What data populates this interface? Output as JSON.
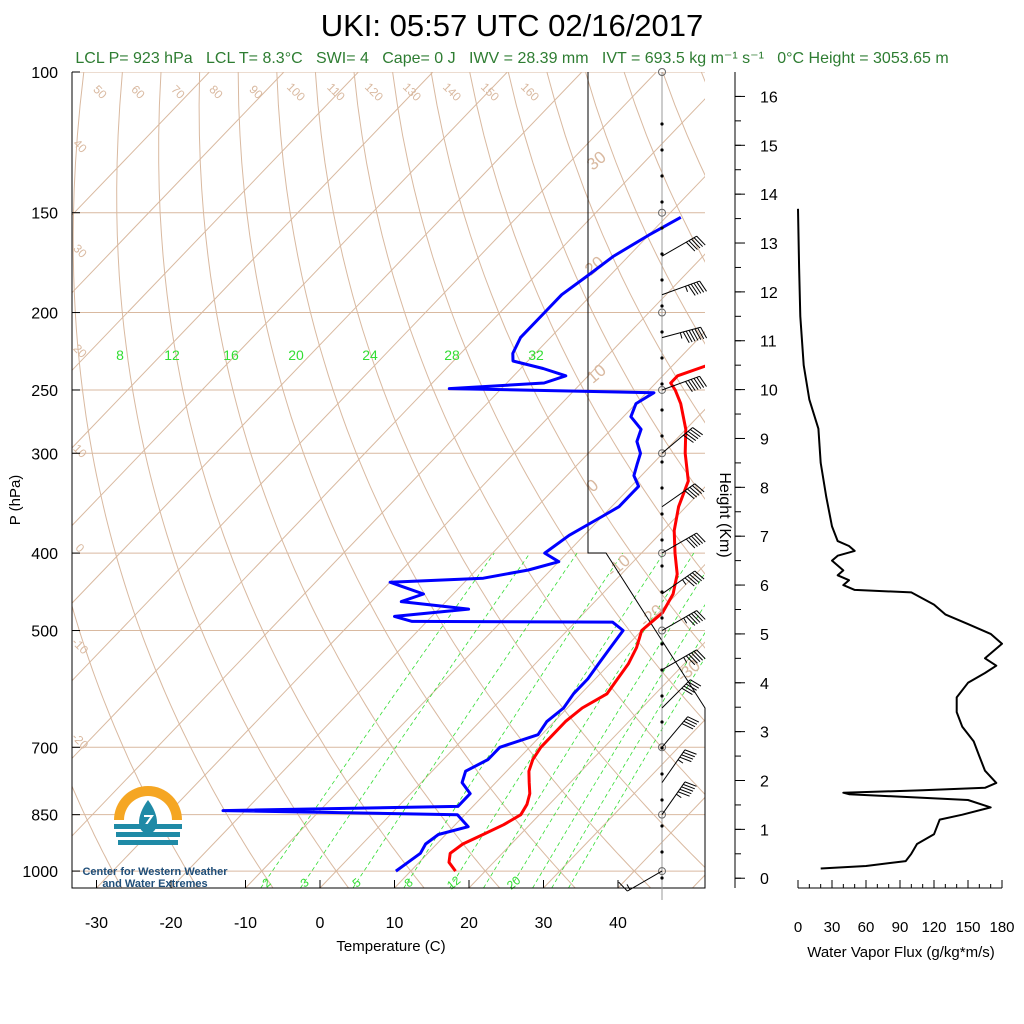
{
  "title": "UKI: 05:57 UTC 02/16/2017",
  "stats": {
    "lcl_p": "LCL P= 923 hPa",
    "lcl_t": "LCL T= 8.3°C",
    "swi": "SWI= 4",
    "cape": "Cape= 0 J",
    "iwv": "IWV = 28.39 mm",
    "ivt": "IVT = 693.5 kg m⁻¹ s⁻¹",
    "zero_height": "0°C Height = 3053.65 m"
  },
  "logo": {
    "line1": "Center for Western Weather",
    "line2": "and Water Extremes"
  },
  "colors": {
    "temperature": "#ff0000",
    "dewpoint": "#0000ff",
    "dry_adiabat": "#d9b9a0",
    "isotherm": "#d9b9a0",
    "mixing_ratio": "#33dd33",
    "stats_text": "#2e7d32",
    "logo_orange": "#f5a623",
    "logo_teal": "#1f8aa6"
  },
  "chart_data": [
    {
      "type": "line",
      "name": "skew-t",
      "xlabel": "Temperature (C)",
      "ylabel": "P (hPa)",
      "xlim": [
        -35,
        50
      ],
      "ylim": [
        1050,
        100
      ],
      "y_scale": "log",
      "x_ticks": [
        -30,
        -20,
        -10,
        0,
        10,
        20,
        30,
        40
      ],
      "y_ticks": [
        100,
        150,
        200,
        250,
        300,
        400,
        500,
        700,
        850,
        1000
      ],
      "grid": true,
      "mixing_ratio_labels_top": [
        "8",
        "12",
        "16",
        "20",
        "24",
        "28",
        "32"
      ],
      "mixing_ratio_labels_bottom": [
        "2",
        "3",
        "5",
        "8",
        "12",
        "20"
      ],
      "dry_adiabat_labels": [
        "50",
        "60",
        "70",
        "80",
        "90",
        "100",
        "110",
        "120",
        "130",
        "140",
        "150",
        "160"
      ],
      "isotherm_labels": [
        "40",
        "30",
        "20",
        "10",
        "0",
        "-10",
        "-20"
      ],
      "series": [
        {
          "name": "Temperature",
          "points": [
            [
              1000,
              16
            ],
            [
              975,
              14
            ],
            [
              950,
              13
            ],
            [
              925,
              13.5
            ],
            [
              900,
              15
            ],
            [
              875,
              16.5
            ],
            [
              850,
              17.5
            ],
            [
              825,
              17
            ],
            [
              800,
              16
            ],
            [
              775,
              14.5
            ],
            [
              750,
              13
            ],
            [
              725,
              12
            ],
            [
              700,
              11.5
            ],
            [
              675,
              11.5
            ],
            [
              650,
              11.5
            ],
            [
              625,
              12
            ],
            [
              600,
              13.5
            ],
            [
              575,
              13
            ],
            [
              550,
              12.5
            ],
            [
              525,
              11.5
            ],
            [
              500,
              10
            ],
            [
              475,
              10.5
            ],
            [
              450,
              9.5
            ],
            [
              425,
              7.5
            ],
            [
              400,
              4.5
            ],
            [
              375,
              1.5
            ],
            [
              350,
              -1
            ],
            [
              325,
              -3
            ],
            [
              300,
              -7
            ],
            [
              280,
              -10
            ],
            [
              260,
              -14
            ],
            [
              250,
              -16.5
            ],
            [
              245,
              -18
            ],
            [
              240,
              -18
            ],
            [
              232,
              -15
            ],
            [
              225,
              -13
            ],
            [
              215,
              -12
            ],
            [
              200,
              -11
            ],
            [
              190,
              -10
            ],
            [
              180,
              -10
            ],
            [
              170,
              -10
            ],
            [
              160,
              -9.5
            ],
            [
              150,
              -9
            ]
          ]
        },
        {
          "name": "Dewpoint",
          "points": [
            [
              1000,
              8
            ],
            [
              975,
              8.5
            ],
            [
              950,
              9
            ],
            [
              925,
              8.5
            ],
            [
              900,
              9
            ],
            [
              880,
              12
            ],
            [
              860,
              10
            ],
            [
              850,
              9
            ],
            [
              840,
              -23
            ],
            [
              830,
              8
            ],
            [
              800,
              8
            ],
            [
              775,
              5.5
            ],
            [
              750,
              4.5
            ],
            [
              725,
              6
            ],
            [
              700,
              6
            ],
            [
              675,
              9.5
            ],
            [
              650,
              9
            ],
            [
              625,
              9.5
            ],
            [
              600,
              9
            ],
            [
              575,
              9
            ],
            [
              550,
              8.5
            ],
            [
              525,
              8
            ],
            [
              500,
              7.5
            ],
            [
              488,
              5
            ],
            [
              487,
              -22
            ],
            [
              480,
              -25
            ],
            [
              470,
              -16
            ],
            [
              460,
              -26
            ],
            [
              450,
              -24
            ],
            [
              440,
              -28
            ],
            [
              435,
              -30
            ],
            [
              430,
              -18
            ],
            [
              420,
              -13
            ],
            [
              410,
              -10
            ],
            [
              400,
              -13
            ],
            [
              380,
              -12
            ],
            [
              370,
              -11
            ],
            [
              360,
              -10
            ],
            [
              350,
              -9
            ],
            [
              340,
              -9
            ],
            [
              330,
              -9
            ],
            [
              320,
              -11
            ],
            [
              310,
              -12
            ],
            [
              300,
              -13
            ],
            [
              290,
              -15
            ],
            [
              280,
              -16
            ],
            [
              270,
              -19
            ],
            [
              260,
              -20
            ],
            [
              252,
              -19
            ],
            [
              249,
              -47
            ],
            [
              245,
              -35
            ],
            [
              240,
              -33
            ],
            [
              235,
              -37
            ],
            [
              230,
              -42
            ],
            [
              225,
              -43
            ],
            [
              215,
              -44
            ],
            [
              200,
              -44
            ],
            [
              190,
              -44
            ],
            [
              180,
              -43
            ],
            [
              170,
              -42
            ],
            [
              160,
              -40
            ],
            [
              152,
              -38
            ]
          ]
        }
      ],
      "wind_barbs": [
        {
          "p": 1000,
          "speed_kt": 15,
          "dir_deg": 60
        },
        {
          "p": 850,
          "speed_kt": 55,
          "dir_deg": 215
        },
        {
          "p": 775,
          "speed_kt": 45,
          "dir_deg": 215
        },
        {
          "p": 700,
          "speed_kt": 40,
          "dir_deg": 220
        },
        {
          "p": 625,
          "speed_kt": 50,
          "dir_deg": 225
        },
        {
          "p": 560,
          "speed_kt": 55,
          "dir_deg": 240
        },
        {
          "p": 500,
          "speed_kt": 55,
          "dir_deg": 240
        },
        {
          "p": 450,
          "speed_kt": 55,
          "dir_deg": 235
        },
        {
          "p": 400,
          "speed_kt": 50,
          "dir_deg": 240
        },
        {
          "p": 350,
          "speed_kt": 50,
          "dir_deg": 235
        },
        {
          "p": 300,
          "speed_kt": 50,
          "dir_deg": 230
        },
        {
          "p": 250,
          "speed_kt": 60,
          "dir_deg": 250
        },
        {
          "p": 215,
          "speed_kt": 75,
          "dir_deg": 255
        },
        {
          "p": 190,
          "speed_kt": 55,
          "dir_deg": 250
        },
        {
          "p": 170,
          "speed_kt": 50,
          "dir_deg": 240
        }
      ]
    },
    {
      "type": "line",
      "name": "water-vapor-flux",
      "xlabel": "Water Vapor Flux (g/kg*m/s)",
      "ylabel": "Height (Km)",
      "xlim": [
        0,
        180
      ],
      "ylim": [
        -0.2,
        16.5
      ],
      "x_ticks": [
        0,
        30,
        60,
        90,
        120,
        150,
        180
      ],
      "y_ticks": [
        0,
        1,
        2,
        3,
        4,
        5,
        6,
        7,
        8,
        9,
        10,
        11,
        12,
        13,
        14,
        15,
        16
      ],
      "grid": false,
      "series": [
        {
          "name": "Water Vapor Flux",
          "points": [
            [
              20,
              0.2
            ],
            [
              60,
              0.25
            ],
            [
              95,
              0.35
            ],
            [
              100,
              0.5
            ],
            [
              105,
              0.7
            ],
            [
              120,
              0.9
            ],
            [
              125,
              1.2
            ],
            [
              145,
              1.3
            ],
            [
              170,
              1.45
            ],
            [
              150,
              1.6
            ],
            [
              45,
              1.72
            ],
            [
              40,
              1.75
            ],
            [
              110,
              1.8
            ],
            [
              165,
              1.85
            ],
            [
              175,
              1.95
            ],
            [
              165,
              2.2
            ],
            [
              160,
              2.5
            ],
            [
              155,
              2.8
            ],
            [
              145,
              3.1
            ],
            [
              140,
              3.4
            ],
            [
              140,
              3.7
            ],
            [
              150,
              4.0
            ],
            [
              165,
              4.2
            ],
            [
              175,
              4.35
            ],
            [
              165,
              4.5
            ],
            [
              180,
              4.8
            ],
            [
              170,
              5.0
            ],
            [
              150,
              5.2
            ],
            [
              130,
              5.4
            ],
            [
              120,
              5.6
            ],
            [
              100,
              5.85
            ],
            [
              50,
              5.9
            ],
            [
              40,
              6.0
            ],
            [
              45,
              6.1
            ],
            [
              35,
              6.2
            ],
            [
              40,
              6.3
            ],
            [
              30,
              6.5
            ],
            [
              35,
              6.6
            ],
            [
              50,
              6.7
            ],
            [
              45,
              6.8
            ],
            [
              35,
              6.9
            ],
            [
              30,
              7.2
            ],
            [
              25,
              7.8
            ],
            [
              20,
              8.5
            ],
            [
              18,
              9.2
            ],
            [
              10,
              9.8
            ],
            [
              5,
              10.5
            ],
            [
              2,
              11.5
            ],
            [
              1,
              12.5
            ],
            [
              0,
              13.7
            ]
          ]
        }
      ]
    }
  ]
}
